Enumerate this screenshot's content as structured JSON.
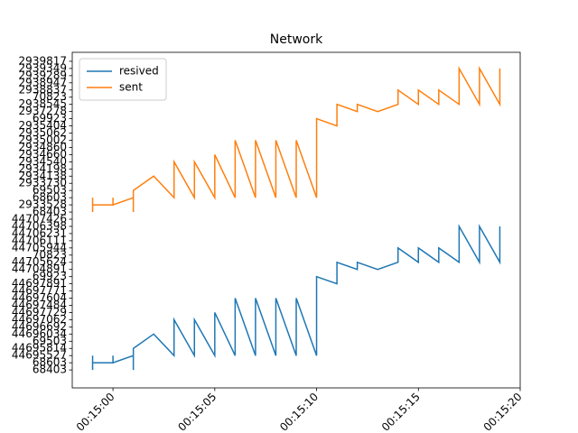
{
  "chart_data": {
    "type": "line",
    "title": "Network",
    "x": [
      "00:14:59",
      "00:14:59",
      "00:14:59",
      "00:15:00",
      "00:15:00",
      "00:15:00",
      "00:15:01",
      "00:15:01",
      "00:15:01",
      "00:15:02",
      "00:15:03",
      "00:15:03",
      "00:15:04",
      "00:15:04",
      "00:15:05",
      "00:15:05",
      "00:15:06",
      "00:15:06",
      "00:15:07",
      "00:15:07",
      "00:15:08",
      "00:15:08",
      "00:15:09",
      "00:15:09",
      "00:15:10",
      "00:15:10",
      "00:15:11",
      "00:15:11",
      "00:15:12",
      "00:15:12",
      "00:15:13",
      "00:15:14",
      "00:15:14",
      "00:15:15",
      "00:15:15",
      "00:15:16",
      "00:15:16",
      "00:15:17",
      "00:15:17",
      "00:15:18",
      "00:15:18",
      "00:15:19",
      "00:15:19"
    ],
    "series": [
      {
        "name": "resived",
        "color": "#1f77b4",
        "values": [
          0,
          2,
          1,
          1,
          2,
          1,
          2,
          0,
          3,
          5,
          2,
          7,
          2,
          7,
          2,
          8,
          2,
          10,
          2,
          10,
          2,
          10,
          2,
          10,
          2,
          13,
          12,
          15,
          14,
          15,
          14,
          15,
          17,
          15,
          17,
          15,
          17,
          15,
          20,
          15,
          20,
          15,
          20
        ]
      },
      {
        "name": "sent",
        "color": "#ff7f0e",
        "values": [
          22,
          24,
          23,
          23,
          24,
          23,
          24,
          22,
          25,
          27,
          24,
          29,
          24,
          29,
          24,
          30,
          24,
          32,
          24,
          32,
          24,
          32,
          24,
          32,
          24,
          35,
          34,
          37,
          36,
          37,
          36,
          37,
          39,
          37,
          39,
          37,
          39,
          37,
          42,
          37,
          42,
          37,
          42
        ]
      }
    ],
    "xlim": [
      "00:14:58",
      "00:15:20"
    ],
    "xticks": [
      "00:15:00",
      "00:15:05",
      "00:15:10",
      "00:15:15",
      "00:15:20"
    ],
    "ylim": [
      -2.5,
      44.25
    ],
    "yticks": [
      {
        "value": 0,
        "label": "68403"
      },
      {
        "value": 1,
        "label": "68603"
      },
      {
        "value": 2,
        "label": "44695527"
      },
      {
        "value": 3,
        "label": "44695814"
      },
      {
        "value": 4,
        "label": "69503"
      },
      {
        "value": 5,
        "label": "44696034"
      },
      {
        "value": 6,
        "label": "44696692"
      },
      {
        "value": 7,
        "label": "44697062"
      },
      {
        "value": 8,
        "label": "44697729"
      },
      {
        "value": 9,
        "label": "44697484"
      },
      {
        "value": 10,
        "label": "44697604"
      },
      {
        "value": 11,
        "label": "44697771"
      },
      {
        "value": 12,
        "label": "44697891"
      },
      {
        "value": 13,
        "label": "69923"
      },
      {
        "value": 14,
        "label": "44704891"
      },
      {
        "value": 15,
        "label": "44705624"
      },
      {
        "value": 16,
        "label": "70823"
      },
      {
        "value": 17,
        "label": "44705944"
      },
      {
        "value": 18,
        "label": "44706111"
      },
      {
        "value": 19,
        "label": "44706231"
      },
      {
        "value": 20,
        "label": "44706398"
      },
      {
        "value": 21,
        "label": "44707426"
      },
      {
        "value": 22,
        "label": "68403"
      },
      {
        "value": 23,
        "label": "2933528"
      },
      {
        "value": 24,
        "label": "68603"
      },
      {
        "value": 25,
        "label": "69503"
      },
      {
        "value": 26,
        "label": "2933730"
      },
      {
        "value": 27,
        "label": "2934138"
      },
      {
        "value": 28,
        "label": "2934198"
      },
      {
        "value": 29,
        "label": "2934540"
      },
      {
        "value": 30,
        "label": "2934660"
      },
      {
        "value": 31,
        "label": "2934860"
      },
      {
        "value": 32,
        "label": "2935002"
      },
      {
        "value": 33,
        "label": "2935062"
      },
      {
        "value": 34,
        "label": "2935404"
      },
      {
        "value": 35,
        "label": "69923"
      },
      {
        "value": 36,
        "label": "2937278"
      },
      {
        "value": 37,
        "label": "2938545"
      },
      {
        "value": 38,
        "label": "70823"
      },
      {
        "value": 39,
        "label": "2938837"
      },
      {
        "value": 40,
        "label": "2938947"
      },
      {
        "value": 41,
        "label": "2939289"
      },
      {
        "value": 42,
        "label": "2939349"
      },
      {
        "value": 43,
        "label": "2939817"
      }
    ],
    "legend": "upper left"
  }
}
